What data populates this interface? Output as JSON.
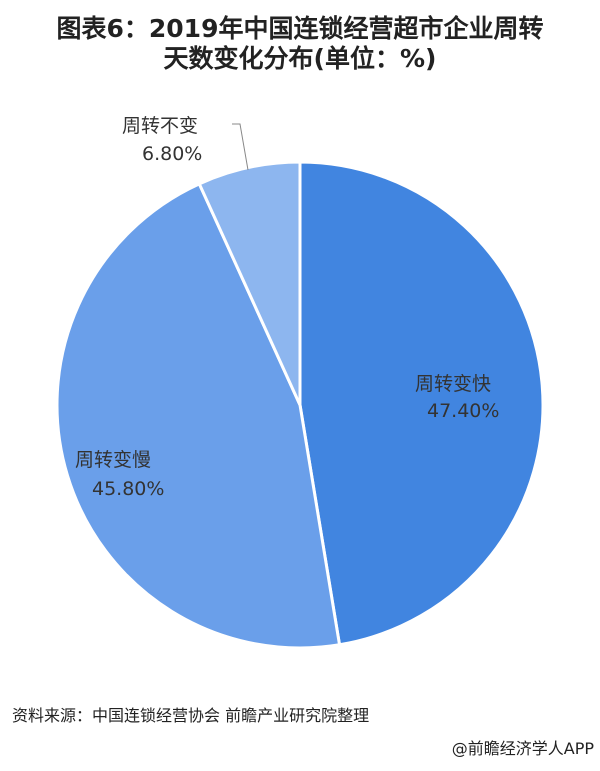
{
  "title_line1": "图表6：2019年中国连锁经营超市企业周转",
  "title_line2": "天数变化分布(单位：%)",
  "source": "资料来源：中国连锁经营协会 前瞻产业研究院整理",
  "credit": "@前瞻经济学人APP",
  "chart_data": {
    "type": "pie",
    "title": "图表6：2019年中国连锁经营超市企业周转天数变化分布(单位：%)",
    "start": "12 o'clock, clockwise",
    "slices": [
      {
        "label": "周转变快",
        "value": 47.4,
        "value_label": "47.40%",
        "color": "#4185e0"
      },
      {
        "label": "周转变慢",
        "value": 45.8,
        "value_label": "45.80%",
        "color": "#6a9fea"
      },
      {
        "label": "周转不变",
        "value": 6.8,
        "value_label": "6.80%",
        "color": "#8db6ef"
      }
    ]
  }
}
